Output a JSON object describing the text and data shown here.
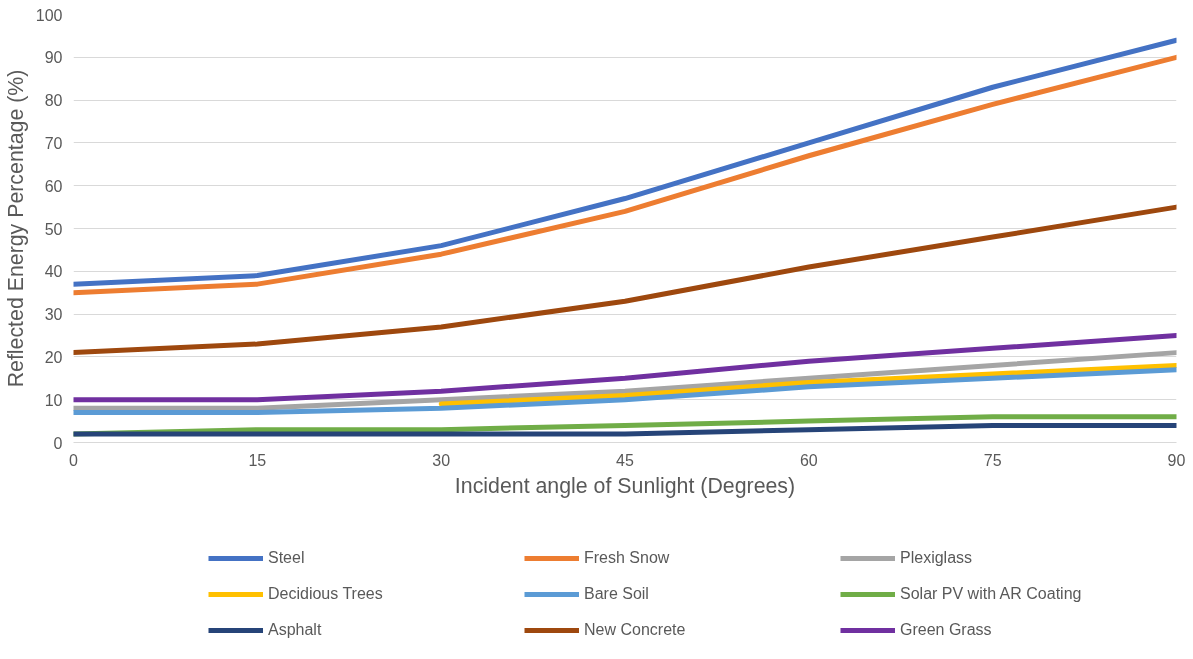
{
  "chart_data": {
    "type": "line",
    "xlabel": "Incident angle of Sunlight (Degrees)",
    "ylabel": "Reflected Energy Percentage (%)",
    "x": [
      0,
      15,
      30,
      45,
      60,
      75,
      90
    ],
    "xlim": [
      0,
      90
    ],
    "xticks": [
      0,
      15,
      30,
      45,
      60,
      75,
      90
    ],
    "ylim": [
      0,
      100
    ],
    "yticks": [
      0,
      10,
      20,
      30,
      40,
      50,
      60,
      70,
      80,
      90,
      100
    ],
    "grid": "y",
    "legend": "bottom",
    "marker": "none",
    "line_style": "solid",
    "series": [
      {
        "name": "Steel",
        "color": "#4472c4",
        "values": [
          37,
          39,
          46,
          57,
          70,
          83,
          94
        ]
      },
      {
        "name": "Fresh Snow",
        "color": "#ed7d31",
        "values": [
          35,
          37,
          44,
          54,
          67,
          79,
          90
        ]
      },
      {
        "name": "Plexiglass",
        "color": "#a5a5a5",
        "values": [
          8,
          8,
          10,
          12,
          15,
          18,
          21
        ]
      },
      {
        "name": "Decidious Trees",
        "color": "#ffc000",
        "values": [
          null,
          null,
          9,
          11,
          14,
          16,
          18
        ]
      },
      {
        "name": "Bare Soil",
        "color": "#5b9bd5",
        "values": [
          7,
          7,
          8,
          10,
          13,
          15,
          17
        ]
      },
      {
        "name": "Solar PV with AR Coating",
        "color": "#70ad47",
        "values": [
          2,
          3,
          3,
          4,
          5,
          6,
          6
        ]
      },
      {
        "name": "Asphalt",
        "color": "#264478",
        "values": [
          2,
          2,
          2,
          2,
          3,
          4,
          4
        ]
      },
      {
        "name": "New Concrete",
        "color": "#9e480e",
        "values": [
          21,
          23,
          27,
          33,
          41,
          48,
          55
        ]
      },
      {
        "name": "Green Grass",
        "color": "#7030a0",
        "values": [
          10,
          10,
          12,
          15,
          19,
          22,
          25
        ]
      }
    ]
  }
}
